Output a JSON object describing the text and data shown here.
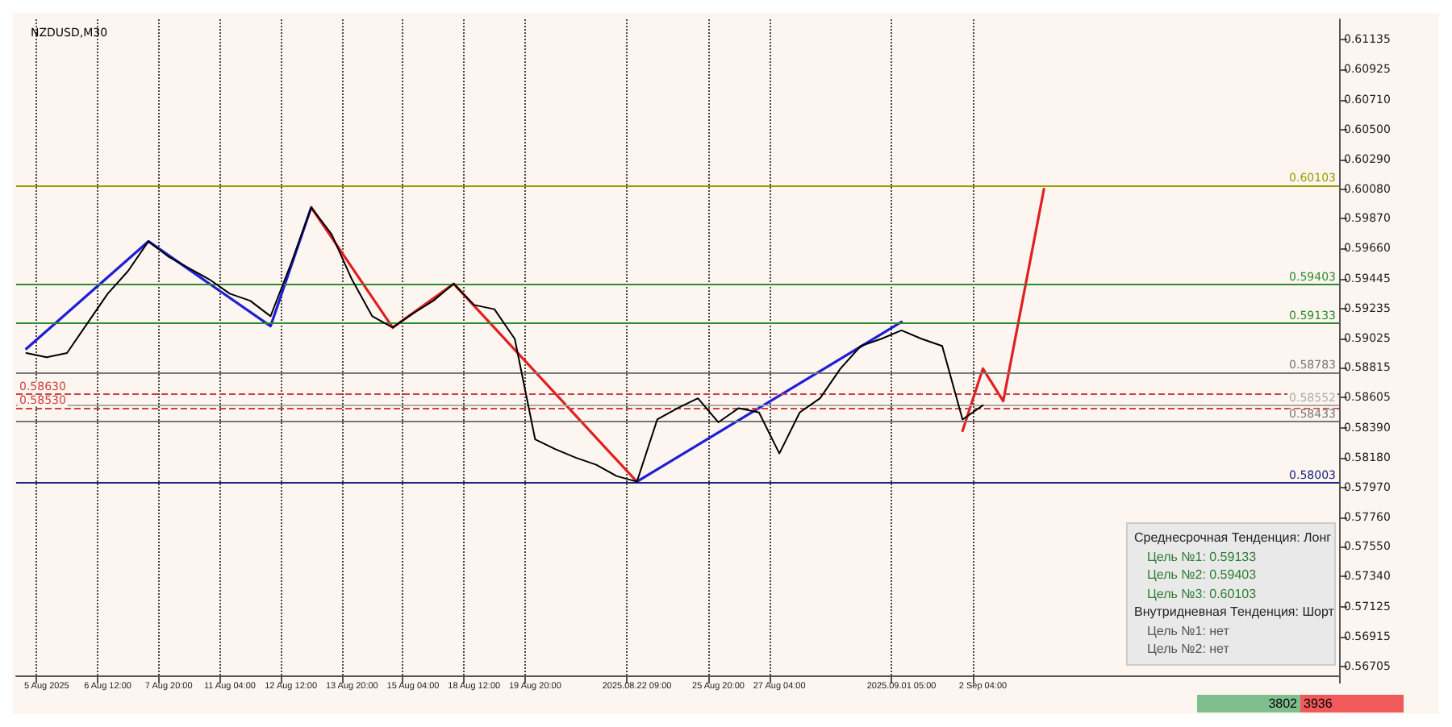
{
  "chart_data": {
    "type": "line",
    "title": "NZDUSD,M30",
    "categories": [
      null,
      "5 Aug 2025",
      null,
      null,
      "6 Aug 12:00",
      null,
      null,
      "7 Aug 20:00",
      null,
      null,
      "11 Aug 04:00",
      null,
      null,
      "12 Aug 12:00",
      null,
      null,
      "13 Aug 20:00",
      null,
      null,
      "15 Aug 04:00",
      null,
      null,
      "18 Aug 12:00",
      null,
      null,
      "19 Aug 20:00",
      null,
      null,
      null,
      null,
      "2025.08.22 09:00",
      null,
      null,
      null,
      "25 Aug 20:00",
      null,
      null,
      "27 Aug 04:00",
      null,
      null,
      null,
      null,
      null,
      "2025.09.01 05:00",
      null,
      null,
      null,
      "2 Sep 04:00",
      null,
      null,
      null,
      null,
      null,
      null,
      null,
      null,
      null,
      null,
      null,
      null,
      null,
      null,
      null,
      null,
      null
    ],
    "series": [
      {
        "color": "#000000",
        "values": [
          0.5892,
          0.5889,
          0.5892,
          0.5913,
          0.5934,
          0.595,
          0.5971,
          0.596,
          0.5952,
          0.5944,
          0.5934,
          0.5929,
          0.5918,
          0.5955,
          0.5995,
          0.5976,
          0.5944,
          0.5918,
          0.591,
          0.592,
          0.5929,
          0.5941,
          0.5926,
          0.5923,
          0.5902,
          0.5831,
          0.5824,
          0.5818,
          0.5813,
          0.5805,
          0.5801,
          0.5845,
          0.5853,
          0.586,
          0.5843,
          0.5853,
          0.585,
          0.5821,
          0.585,
          0.586,
          0.5881,
          0.5897,
          0.5902,
          0.5908,
          0.5902,
          0.5897,
          0.5845,
          0.5855,
          null,
          null,
          null,
          null,
          null,
          null,
          null,
          null,
          null,
          null,
          null,
          null,
          null,
          null,
          null,
          null,
          null
        ]
      },
      {
        "color": "#1f1fd6",
        "values": [
          0.5895,
          null,
          null,
          null,
          null,
          null,
          0.5971,
          null,
          null,
          null,
          null,
          null,
          0.5911,
          null,
          0.5995,
          null,
          null,
          null,
          null,
          null,
          null,
          null,
          null,
          null,
          null,
          null,
          null,
          null,
          null,
          null,
          null,
          null,
          null,
          null,
          null,
          null,
          null,
          null,
          null,
          null,
          null,
          null,
          null,
          null,
          null,
          null,
          null,
          null,
          null,
          null,
          null,
          null,
          null,
          null,
          null,
          null,
          null,
          null,
          null,
          null,
          null,
          null,
          null,
          null,
          null
        ]
      },
      {
        "color": "#1f1fd6",
        "values": [
          null,
          null,
          null,
          null,
          null,
          null,
          null,
          null,
          null,
          null,
          null,
          null,
          null,
          null,
          null,
          null,
          null,
          null,
          null,
          null,
          null,
          null,
          null,
          null,
          null,
          null,
          null,
          null,
          null,
          null,
          0.5801,
          null,
          null,
          null,
          null,
          null,
          null,
          null,
          null,
          null,
          null,
          null,
          null,
          0.5914,
          null,
          null,
          null,
          null,
          null,
          null,
          null,
          null,
          null,
          null,
          null,
          null,
          null,
          null,
          null,
          null,
          null,
          null,
          null,
          null,
          null
        ]
      },
      {
        "color": "#e02020",
        "values": [
          null,
          null,
          null,
          null,
          null,
          null,
          null,
          null,
          null,
          null,
          null,
          null,
          null,
          null,
          0.5995,
          null,
          null,
          null,
          0.591,
          null,
          null,
          0.5941,
          null,
          null,
          null,
          null,
          null,
          null,
          null,
          null,
          0.5801,
          null,
          null,
          null,
          null,
          null,
          null,
          null,
          null,
          null,
          null,
          null,
          null,
          null,
          null,
          null,
          null,
          null,
          null,
          null,
          null,
          null,
          null,
          null,
          null,
          null,
          null,
          null,
          null,
          null,
          null,
          null,
          null,
          null,
          null
        ]
      },
      {
        "color": "#e02020",
        "values": [
          null,
          null,
          null,
          null,
          null,
          null,
          null,
          null,
          null,
          null,
          null,
          null,
          null,
          null,
          null,
          null,
          null,
          null,
          null,
          null,
          null,
          null,
          null,
          null,
          null,
          null,
          null,
          null,
          null,
          null,
          null,
          null,
          null,
          null,
          null,
          null,
          null,
          null,
          null,
          null,
          null,
          null,
          null,
          null,
          null,
          null,
          0.5837,
          0.5881,
          0.5858,
          null,
          0.6008,
          null,
          null,
          null,
          null,
          null,
          null,
          null,
          null,
          null,
          null,
          null,
          null,
          null,
          null
        ]
      }
    ],
    "ylim": [
      0.5664,
      0.6128
    ],
    "yticks": [
      0.61135,
      0.60925,
      {
        "value": 0.6071,
        "label": "0.60710"
      },
      {
        "value": 0.605,
        "label": "0.60500"
      },
      {
        "value": 0.6029,
        "label": "0.60290"
      },
      {
        "value": 0.6008,
        "label": "0.60080"
      },
      {
        "value": 0.5987,
        "label": "0.59870"
      },
      {
        "value": 0.5966,
        "label": "0.59660"
      },
      0.59445,
      0.59235,
      0.59025,
      0.58815,
      0.58605,
      {
        "value": 0.5839,
        "label": "0.58390"
      },
      {
        "value": 0.5818,
        "label": "0.58180"
      },
      {
        "value": 0.5797,
        "label": "0.57970"
      },
      {
        "value": 0.5776,
        "label": "0.57760"
      },
      {
        "value": 0.5755,
        "label": "0.57550"
      },
      {
        "value": 0.5734,
        "label": "0.57340"
      },
      0.57125,
      0.56915,
      0.56705
    ],
    "ref_lines": [
      {
        "axis": "y",
        "value": 0.60103,
        "label": "0.60103",
        "color": "#9a9a00"
      },
      {
        "axis": "y",
        "value": 0.59403,
        "label": "0.59403",
        "color": "#2e8b2e"
      },
      {
        "axis": "y",
        "value": 0.59133,
        "label": "0.59133",
        "color": "#2e8b2e"
      },
      {
        "axis": "y",
        "value": 0.58783,
        "label": "0.58783",
        "color": "#777777"
      },
      {
        "axis": "y",
        "value": 0.58433,
        "label": "0.58433",
        "color": "#777777"
      },
      {
        "axis": "y",
        "value": 0.58003,
        "label": "0.58003",
        "color": "#1a237e"
      },
      {
        "axis": "y",
        "value": 0.5863,
        "label": "0.58630",
        "color": "#d04040",
        "line_style": "dashed"
      },
      {
        "axis": "y",
        "value": 0.5853,
        "label": "0.58530",
        "color": "#d04040",
        "line_style": "dashed"
      },
      {
        "axis": "y",
        "value": 0.58552,
        "label": "0.58552",
        "color": "#aaaaaa"
      }
    ],
    "annotations": [
      "Среднесрочная Тенденция: Лонг",
      "Цель №1: 0.59133",
      "Цель №2: 0.59403",
      "Цель №3: 0.60103",
      "Внутридневная Тенденция: Шорт",
      "Цель №1: нет",
      "Цель №2: нет",
      "3802",
      "3936"
    ],
    "grid": "x",
    "marker": "none",
    "line_style": "solid"
  }
}
